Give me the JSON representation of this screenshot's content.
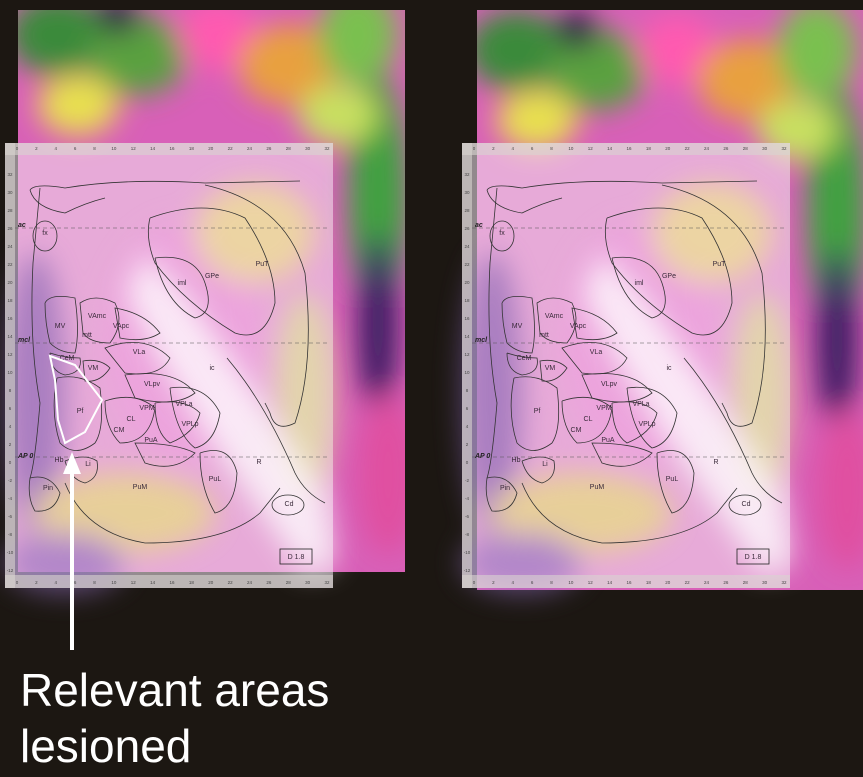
{
  "atlas": {
    "regions": [
      "fx",
      "MV",
      "VAmc",
      "mtt",
      "VApc",
      "iml",
      "GPe",
      "PuT",
      "CeM",
      "VLa",
      "VM",
      "ic",
      "VLpv",
      "Pf",
      "VPM",
      "VPLa",
      "CL",
      "CM",
      "VPLp",
      "PuA",
      "R",
      "Hb",
      "Li",
      "Pin",
      "PuM",
      "PuL",
      "Cd"
    ],
    "planes": [
      "ac",
      "mcl",
      "AP 0"
    ],
    "section_label": "D 1.8",
    "x_ticks": [
      0,
      2,
      4,
      6,
      8,
      10,
      12,
      14,
      16,
      18,
      20,
      22,
      24,
      26,
      28,
      30,
      32
    ],
    "y_ticks": [
      32,
      30,
      28,
      26,
      24,
      22,
      20,
      18,
      16,
      14,
      12,
      10,
      8,
      6,
      4,
      2,
      0,
      -2,
      -4,
      -6,
      -8,
      -10,
      -12
    ]
  },
  "annotation": {
    "lines": [
      "Relevant areas",
      "lesioned"
    ]
  }
}
